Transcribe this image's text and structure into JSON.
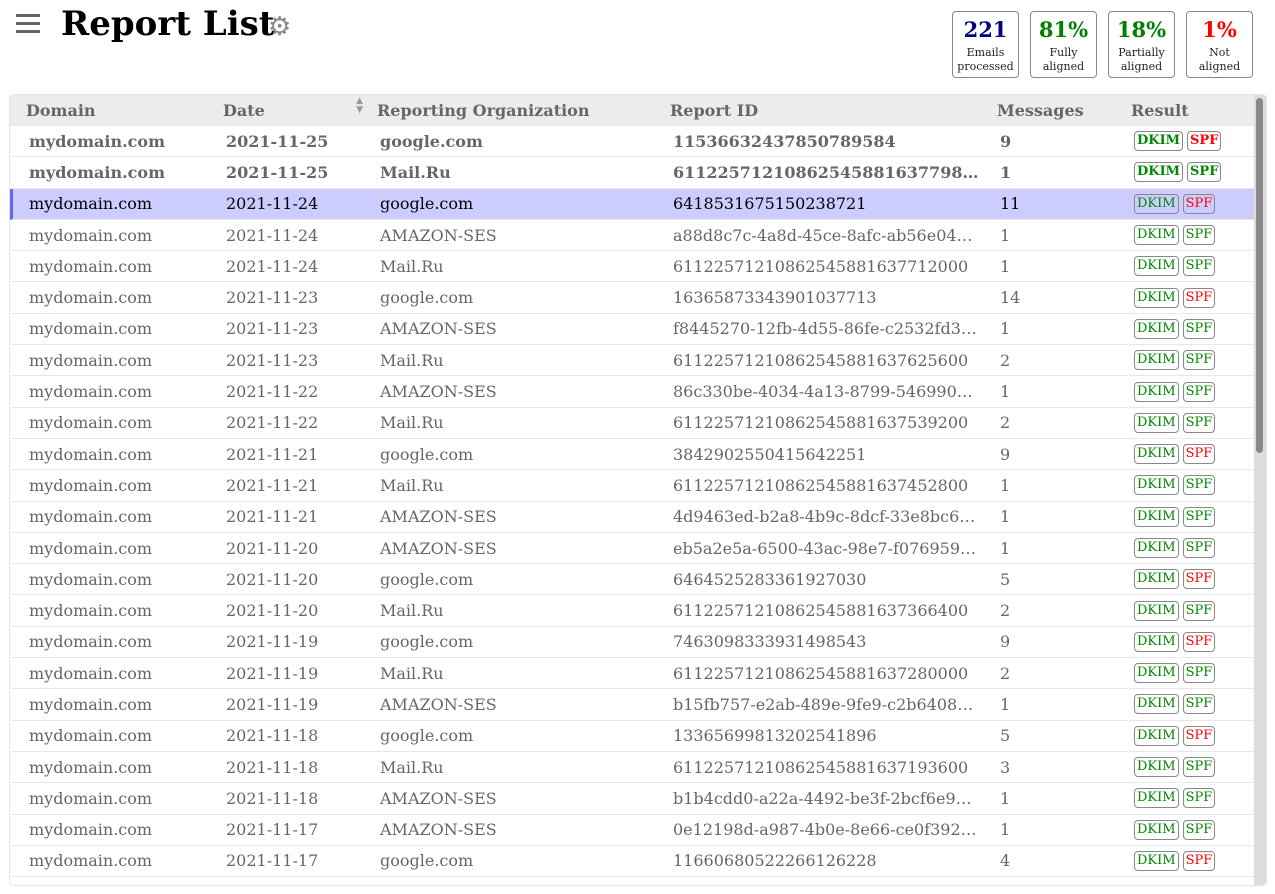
{
  "header": {
    "title": "Report List",
    "menu_icon": "hamburger-icon",
    "settings_icon": "gear-icon"
  },
  "stats": [
    {
      "value": "221",
      "label1": "Emails",
      "label2": "processed",
      "color": "#000080"
    },
    {
      "value": "81%",
      "label1": "Fully",
      "label2": "aligned",
      "color": "#008000"
    },
    {
      "value": "18%",
      "label1": "Partially",
      "label2": "aligned",
      "color": "#008000"
    },
    {
      "value": "1%",
      "label1": "Not",
      "label2": "aligned",
      "color": "#ff0000"
    }
  ],
  "table": {
    "columns": [
      "Domain",
      "Date",
      "Reporting Organization",
      "Report ID",
      "Messages",
      "Result"
    ],
    "dkim_label": "DKIM",
    "spf_label": "SPF",
    "rows": [
      [
        "mydomain.com",
        "2021-11-25",
        "google.com",
        "11536632437850789584",
        "9",
        true,
        false,
        true,
        false
      ],
      [
        "mydomain.com",
        "2021-11-25",
        "Mail.Ru",
        "61122571210862545881637798…",
        "1",
        true,
        true,
        true,
        false
      ],
      [
        "mydomain.com",
        "2021-11-24",
        "google.com",
        "6418531675150238721",
        "11",
        true,
        false,
        false,
        true
      ],
      [
        "mydomain.com",
        "2021-11-24",
        "AMAZON-SES",
        "a88d8c7c-4a8d-45ce-8afc-ab56e04…",
        "1",
        true,
        true,
        false,
        false
      ],
      [
        "mydomain.com",
        "2021-11-24",
        "Mail.Ru",
        "61122571210862545881637712000",
        "1",
        true,
        true,
        false,
        false
      ],
      [
        "mydomain.com",
        "2021-11-23",
        "google.com",
        "16365873343901037713",
        "14",
        true,
        false,
        false,
        false
      ],
      [
        "mydomain.com",
        "2021-11-23",
        "AMAZON-SES",
        "f8445270-12fb-4d55-86fe-c2532fd3…",
        "1",
        true,
        true,
        false,
        false
      ],
      [
        "mydomain.com",
        "2021-11-23",
        "Mail.Ru",
        "61122571210862545881637625600",
        "2",
        true,
        true,
        false,
        false
      ],
      [
        "mydomain.com",
        "2021-11-22",
        "AMAZON-SES",
        "86c330be-4034-4a13-8799-546990…",
        "1",
        true,
        true,
        false,
        false
      ],
      [
        "mydomain.com",
        "2021-11-22",
        "Mail.Ru",
        "61122571210862545881637539200",
        "2",
        true,
        true,
        false,
        false
      ],
      [
        "mydomain.com",
        "2021-11-21",
        "google.com",
        "3842902550415642251",
        "9",
        true,
        false,
        false,
        false
      ],
      [
        "mydomain.com",
        "2021-11-21",
        "Mail.Ru",
        "61122571210862545881637452800",
        "1",
        true,
        true,
        false,
        false
      ],
      [
        "mydomain.com",
        "2021-11-21",
        "AMAZON-SES",
        "4d9463ed-b2a8-4b9c-8dcf-33e8bc6…",
        "1",
        true,
        true,
        false,
        false
      ],
      [
        "mydomain.com",
        "2021-11-20",
        "AMAZON-SES",
        "eb5a2e5a-6500-43ac-98e7-f076959…",
        "1",
        true,
        true,
        false,
        false
      ],
      [
        "mydomain.com",
        "2021-11-20",
        "google.com",
        "6464525283361927030",
        "5",
        true,
        false,
        false,
        false
      ],
      [
        "mydomain.com",
        "2021-11-20",
        "Mail.Ru",
        "61122571210862545881637366400",
        "2",
        true,
        true,
        false,
        false
      ],
      [
        "mydomain.com",
        "2021-11-19",
        "google.com",
        "7463098333931498543",
        "9",
        true,
        false,
        false,
        false
      ],
      [
        "mydomain.com",
        "2021-11-19",
        "Mail.Ru",
        "61122571210862545881637280000",
        "2",
        true,
        true,
        false,
        false
      ],
      [
        "mydomain.com",
        "2021-11-19",
        "AMAZON-SES",
        "b15fb757-e2ab-489e-9fe9-c2b6408…",
        "1",
        true,
        true,
        false,
        false
      ],
      [
        "mydomain.com",
        "2021-11-18",
        "google.com",
        "13365699813202541896",
        "5",
        true,
        false,
        false,
        false
      ],
      [
        "mydomain.com",
        "2021-11-18",
        "Mail.Ru",
        "61122571210862545881637193600",
        "3",
        true,
        true,
        false,
        false
      ],
      [
        "mydomain.com",
        "2021-11-18",
        "AMAZON-SES",
        "b1b4cdd0-a22a-4492-be3f-2bcf6e9…",
        "1",
        true,
        true,
        false,
        false
      ],
      [
        "mydomain.com",
        "2021-11-17",
        "AMAZON-SES",
        "0e12198d-a987-4b0e-8e66-ce0f392…",
        "1",
        true,
        true,
        false,
        false
      ],
      [
        "mydomain.com",
        "2021-11-17",
        "google.com",
        "11660680522266126228",
        "4",
        true,
        false,
        false,
        false
      ]
    ]
  }
}
